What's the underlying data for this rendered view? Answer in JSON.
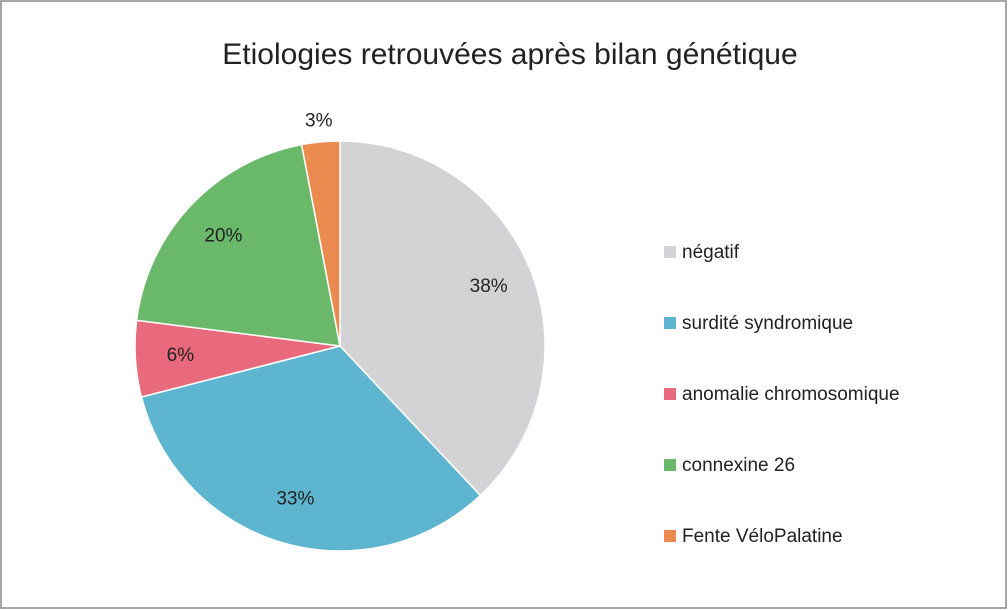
{
  "chart_data": {
    "type": "pie",
    "title": "Etiologies retrouvées après bilan génétique",
    "categories": [
      "négatif",
      "surdité syndromique",
      "anomalie chromosomique",
      "connexine 26",
      "Fente VéloPalatine"
    ],
    "values": [
      38,
      33,
      6,
      20,
      3
    ],
    "value_labels": [
      "38%",
      "33%",
      "6%",
      "20%",
      "3%"
    ],
    "colors": [
      "#d3d3d5",
      "#5db5cf",
      "#e96a7c",
      "#6ab86a",
      "#ec8b50"
    ],
    "legend": "right"
  }
}
